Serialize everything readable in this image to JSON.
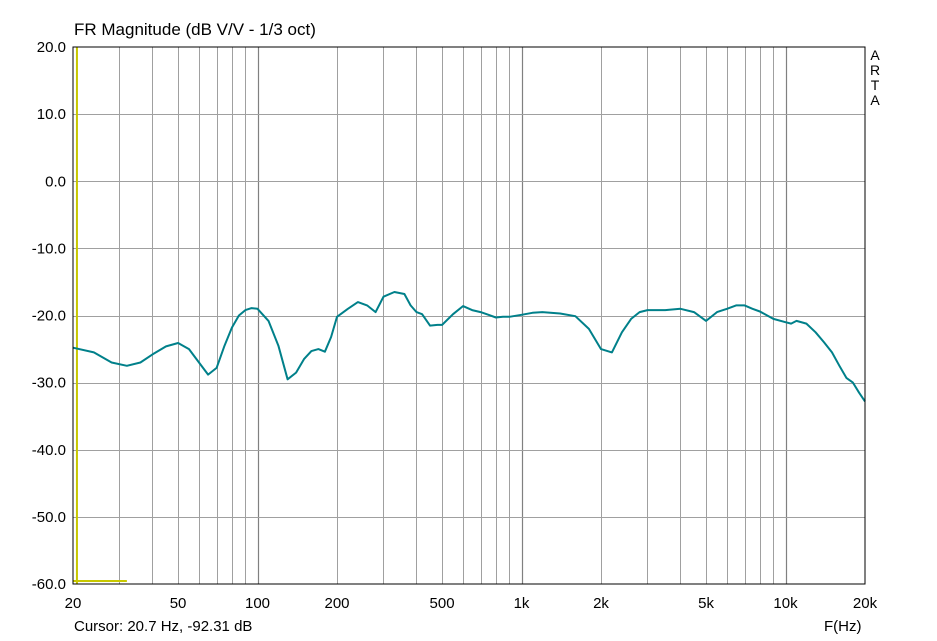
{
  "title": "FR Magnitude (dB V/V - 1/3 oct)",
  "cursor_text": "Cursor: 20.7 Hz, -92.31 dB",
  "x_unit_label": "F(Hz)",
  "watermark": "A\nR\nT\nA",
  "colors": {
    "curve": "#00808a",
    "cursor": "#c8c800",
    "grid": "#a0a0a0",
    "frame": "#000000",
    "background": "#ffffff"
  },
  "chart_data": {
    "type": "line",
    "title": "FR Magnitude (dB V/V - 1/3 oct)",
    "xlabel": "F(Hz)",
    "ylabel": "",
    "xscale": "log",
    "xlim": [
      20,
      20000
    ],
    "ylim": [
      -60,
      20
    ],
    "grid": true,
    "x_ticks": [
      20,
      50,
      100,
      200,
      500,
      1000,
      2000,
      5000,
      10000,
      20000
    ],
    "x_tick_labels": [
      "20",
      "50",
      "100",
      "200",
      "500",
      "1k",
      "2k",
      "5k",
      "10k",
      "20k"
    ],
    "y_ticks": [
      20,
      10,
      0,
      -10,
      -20,
      -30,
      -40,
      -50,
      -60
    ],
    "y_tick_labels": [
      "20.0",
      "10.0",
      "0.0",
      "-10.0",
      "-20.0",
      "-30.0",
      "-40.0",
      "-50.0",
      "-60.0"
    ],
    "series": [
      {
        "x": [
          20,
          24,
          28,
          32,
          36,
          40,
          45,
          50,
          55,
          60,
          65,
          70,
          75,
          80,
          85,
          90,
          95,
          100,
          110,
          120,
          130,
          140,
          150,
          160,
          170,
          180,
          190,
          200,
          220,
          240,
          260,
          280,
          300,
          330,
          360,
          380,
          400,
          420,
          450,
          480,
          500,
          550,
          600,
          650,
          700,
          750,
          800,
          850,
          900,
          1000,
          1100,
          1200,
          1400,
          1600,
          1800,
          2000,
          2200,
          2400,
          2600,
          2800,
          3000,
          3500,
          4000,
          4500,
          5000,
          5500,
          6000,
          6500,
          7000,
          7500,
          8000,
          9000,
          10000,
          10500,
          11000,
          12000,
          13000,
          14000,
          15000,
          16000,
          17000,
          18000,
          19000,
          20000
        ],
        "y": [
          -24.8,
          -25.5,
          -27,
          -27.5,
          -27,
          -25.8,
          -24.6,
          -24.1,
          -25,
          -27,
          -28.8,
          -27.8,
          -24.5,
          -21.8,
          -20,
          -19.2,
          -18.9,
          -19,
          -20.8,
          -24.5,
          -29.5,
          -28.5,
          -26.5,
          -25.3,
          -25,
          -25.4,
          -23.2,
          -20.2,
          -19,
          -18,
          -18.5,
          -19.5,
          -17.2,
          -16.5,
          -16.8,
          -18.5,
          -19.5,
          -19.8,
          -21.5,
          -21.4,
          -21.4,
          -19.8,
          -18.6,
          -19.2,
          -19.5,
          -19.9,
          -20.3,
          -20.2,
          -20.2,
          -19.9,
          -19.6,
          -19.5,
          -19.7,
          -20.1,
          -22,
          -25,
          -25.5,
          -22.5,
          -20.5,
          -19.5,
          -19.2,
          -19.2,
          -19,
          -19.5,
          -20.8,
          -19.5,
          -19,
          -18.5,
          -18.5,
          -19,
          -19.4,
          -20.5,
          -21,
          -21.2,
          -20.8,
          -21.2,
          -22.5,
          -24,
          -25.5,
          -27.5,
          -29.3,
          -30,
          -31.5,
          -32.8
        ]
      }
    ],
    "cursor": {
      "frequency_hz": 20.7,
      "level_db": -92.31
    }
  }
}
